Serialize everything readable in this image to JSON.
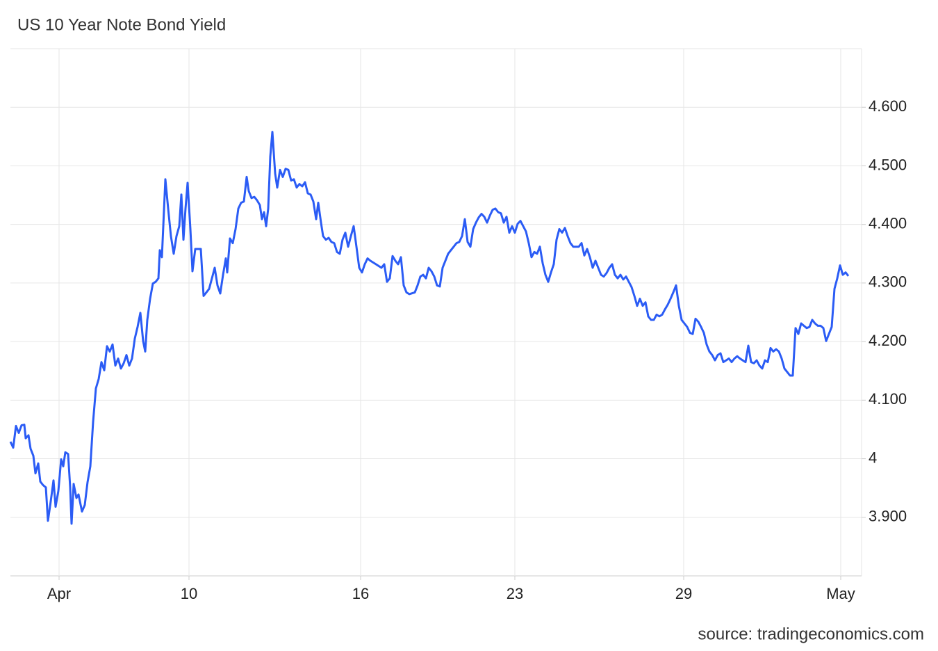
{
  "chart_data": {
    "type": "line",
    "title": "US 10 Year Note Bond Yield",
    "source": "source: tradingeconomics.com",
    "color": "#2b5cf5",
    "grid": true,
    "xlim": [
      15,
      1240
    ],
    "xticks": [
      {
        "value": 85,
        "label": "Apr"
      },
      {
        "value": 272,
        "label": "10"
      },
      {
        "value": 519,
        "label": "16"
      },
      {
        "value": 741,
        "label": "23"
      },
      {
        "value": 984,
        "label": "29"
      },
      {
        "value": 1210,
        "label": "May"
      }
    ],
    "ylim": [
      3.8,
      4.7
    ],
    "yticks": [
      {
        "value": 3.9,
        "label": "3.900"
      },
      4,
      {
        "value": 4.1,
        "label": "4.100"
      },
      {
        "value": 4.2,
        "label": "4.200"
      },
      {
        "value": 4.3,
        "label": "4.300"
      },
      {
        "value": 4.4,
        "label": "4.400"
      },
      {
        "value": 4.5,
        "label": "4.500"
      },
      {
        "value": 4.6,
        "label": "4.600"
      }
    ],
    "x": [
      15,
      19,
      23,
      27,
      31,
      35,
      37,
      41,
      44,
      48,
      51,
      55,
      58,
      62,
      66,
      69,
      73,
      77,
      80,
      84,
      88,
      91,
      94,
      98,
      101,
      103,
      106,
      110,
      113,
      118,
      122,
      126,
      130,
      134,
      138,
      142,
      146,
      150,
      154,
      158,
      162,
      166,
      170,
      174,
      178,
      182,
      186,
      190,
      194,
      198,
      202,
      206,
      209,
      212,
      216,
      220,
      224,
      228,
      230,
      233,
      238,
      242,
      246,
      250,
      254,
      258,
      261,
      264,
      267,
      270,
      274,
      277,
      281,
      289,
      293,
      297,
      301,
      305,
      309,
      313,
      317,
      321,
      325,
      327,
      331,
      335,
      339,
      343,
      347,
      351,
      355,
      358,
      362,
      366,
      370,
      374,
      377,
      380,
      383,
      386,
      389,
      392,
      396,
      399,
      403,
      407,
      411,
      415,
      419,
      423,
      427,
      431,
      435,
      439,
      443,
      447,
      451,
      455,
      458,
      462,
      465,
      469,
      473,
      477,
      481,
      485,
      489,
      493,
      497,
      501,
      505,
      509,
      513,
      517,
      521,
      525,
      529,
      533,
      541,
      549,
      553,
      557,
      561,
      565,
      569,
      573,
      577,
      581,
      585,
      589,
      597,
      601,
      605,
      609,
      613,
      617,
      621,
      625,
      629,
      633,
      637,
      641,
      645,
      649,
      653,
      657,
      661,
      665,
      669,
      673,
      677,
      681,
      685,
      689,
      693,
      697,
      701,
      705,
      709,
      713,
      717,
      721,
      725,
      729,
      733,
      737,
      741,
      745,
      749,
      753,
      757,
      761,
      765,
      769,
      773,
      777,
      781,
      785,
      789,
      793,
      797,
      801,
      805,
      809,
      813,
      817,
      821,
      825,
      833,
      837,
      841,
      845,
      849,
      853,
      857,
      861,
      865,
      869,
      873,
      877,
      881,
      885,
      889,
      893,
      897,
      901,
      905,
      909,
      913,
      917,
      921,
      925,
      929,
      933,
      937,
      941,
      945,
      949,
      953,
      957,
      961,
      965,
      969,
      973,
      977,
      981,
      985,
      989,
      993,
      997,
      1001,
      1005,
      1009,
      1013,
      1017,
      1021,
      1025,
      1029,
      1033,
      1037,
      1041,
      1045,
      1049,
      1053,
      1057,
      1061,
      1065,
      1069,
      1073,
      1077,
      1081,
      1085,
      1089,
      1093,
      1097,
      1101,
      1105,
      1109,
      1113,
      1117,
      1121,
      1125,
      1129,
      1133,
      1137,
      1141,
      1145,
      1149,
      1153,
      1157,
      1161,
      1165,
      1169,
      1173,
      1177,
      1181,
      1185,
      1189,
      1193,
      1197,
      1201,
      1205,
      1209,
      1213,
      1217,
      1221
    ],
    "values": [
      4.029,
      4.019,
      4.056,
      4.044,
      4.057,
      4.058,
      4.035,
      4.04,
      4.017,
      4.005,
      3.975,
      3.992,
      3.961,
      3.955,
      3.951,
      3.894,
      3.927,
      3.963,
      3.918,
      3.945,
      3.999,
      3.987,
      4.011,
      4.008,
      3.951,
      3.889,
      3.957,
      3.933,
      3.939,
      3.91,
      3.921,
      3.96,
      3.987,
      4.063,
      4.12,
      4.136,
      4.165,
      4.151,
      4.192,
      4.183,
      4.195,
      4.159,
      4.171,
      4.154,
      4.163,
      4.177,
      4.159,
      4.171,
      4.205,
      4.225,
      4.249,
      4.201,
      4.183,
      4.237,
      4.273,
      4.299,
      4.302,
      4.308,
      4.356,
      4.344,
      4.477,
      4.427,
      4.38,
      4.35,
      4.38,
      4.397,
      4.451,
      4.374,
      4.427,
      4.471,
      4.392,
      4.32,
      4.358,
      4.358,
      4.278,
      4.284,
      4.29,
      4.308,
      4.326,
      4.296,
      4.282,
      4.314,
      4.342,
      4.318,
      4.376,
      4.368,
      4.392,
      4.427,
      4.437,
      4.439,
      4.481,
      4.457,
      4.445,
      4.447,
      4.441,
      4.433,
      4.409,
      4.421,
      4.397,
      4.427,
      4.516,
      4.558,
      4.487,
      4.463,
      4.493,
      4.481,
      4.495,
      4.493,
      4.475,
      4.477,
      4.463,
      4.469,
      4.465,
      4.472,
      4.453,
      4.451,
      4.439,
      4.409,
      4.437,
      4.403,
      4.38,
      4.374,
      4.377,
      4.37,
      4.368,
      4.353,
      4.35,
      4.374,
      4.386,
      4.362,
      4.38,
      4.397,
      4.362,
      4.326,
      4.318,
      4.332,
      4.342,
      4.338,
      4.332,
      4.326,
      4.332,
      4.302,
      4.308,
      4.346,
      4.338,
      4.332,
      4.344,
      4.296,
      4.284,
      4.281,
      4.284,
      4.296,
      4.311,
      4.314,
      4.308,
      4.326,
      4.32,
      4.311,
      4.296,
      4.294,
      4.326,
      4.338,
      4.35,
      4.356,
      4.362,
      4.368,
      4.37,
      4.38,
      4.409,
      4.37,
      4.362,
      4.392,
      4.403,
      4.412,
      4.418,
      4.413,
      4.403,
      4.415,
      4.425,
      4.427,
      4.421,
      4.419,
      4.403,
      4.413,
      4.386,
      4.397,
      4.386,
      4.401,
      4.406,
      4.397,
      4.388,
      4.368,
      4.344,
      4.353,
      4.35,
      4.362,
      4.334,
      4.314,
      4.302,
      4.318,
      4.332,
      4.374,
      4.392,
      4.386,
      4.394,
      4.38,
      4.368,
      4.362,
      4.362,
      4.368,
      4.347,
      4.358,
      4.344,
      4.326,
      4.338,
      4.326,
      4.314,
      4.311,
      4.317,
      4.326,
      4.332,
      4.314,
      4.308,
      4.314,
      4.306,
      4.311,
      4.302,
      4.293,
      4.278,
      4.261,
      4.273,
      4.261,
      4.267,
      4.243,
      4.237,
      4.237,
      4.246,
      4.243,
      4.246,
      4.255,
      4.263,
      4.273,
      4.284,
      4.296,
      4.261,
      4.237,
      4.231,
      4.225,
      4.215,
      4.213,
      4.239,
      4.234,
      4.225,
      4.215,
      4.195,
      4.183,
      4.177,
      4.168,
      4.177,
      4.18,
      4.165,
      4.168,
      4.171,
      4.165,
      4.171,
      4.175,
      4.171,
      4.168,
      4.165,
      4.193,
      4.165,
      4.163,
      4.168,
      4.159,
      4.154,
      4.168,
      4.165,
      4.189,
      4.183,
      4.187,
      4.183,
      4.171,
      4.154,
      4.148,
      4.142,
      4.142,
      4.223,
      4.213,
      4.231,
      4.227,
      4.223,
      4.225,
      4.237,
      4.231,
      4.227,
      4.227,
      4.223,
      4.201,
      4.213,
      4.225,
      4.29,
      4.308,
      4.33,
      4.314,
      4.318,
      4.312
    ]
  }
}
